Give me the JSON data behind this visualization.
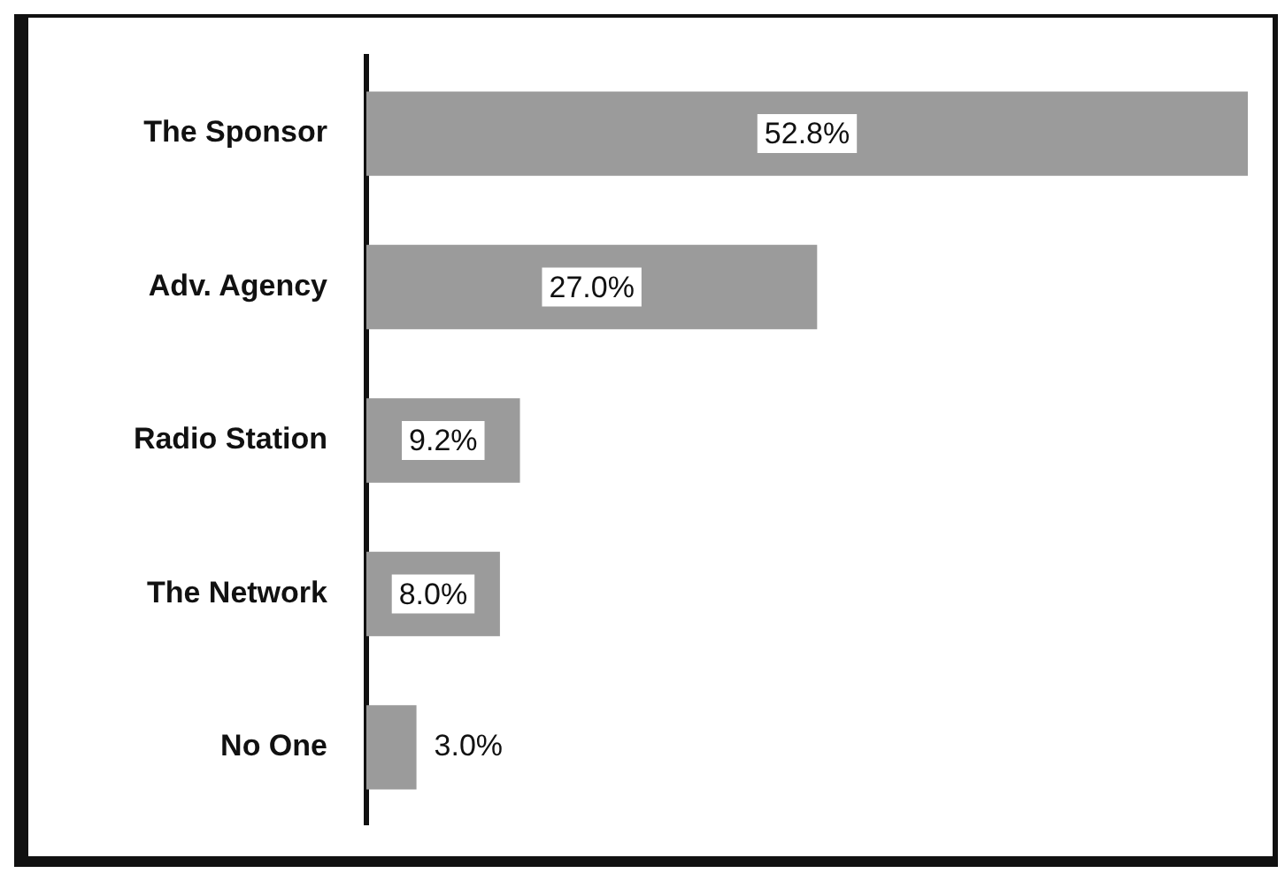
{
  "chart_data": {
    "type": "bar",
    "orientation": "horizontal",
    "categories": [
      "The Sponsor",
      "Adv. Agency",
      "Radio Station",
      "The Network",
      "No One"
    ],
    "values": [
      52.8,
      27.0,
      9.2,
      8.0,
      3.0
    ],
    "value_labels": [
      "52.8%",
      "27.0%",
      "9.2%",
      "8.0%",
      "3.0%"
    ],
    "color": "#9b9b9b",
    "tick_labels": "y"
  }
}
